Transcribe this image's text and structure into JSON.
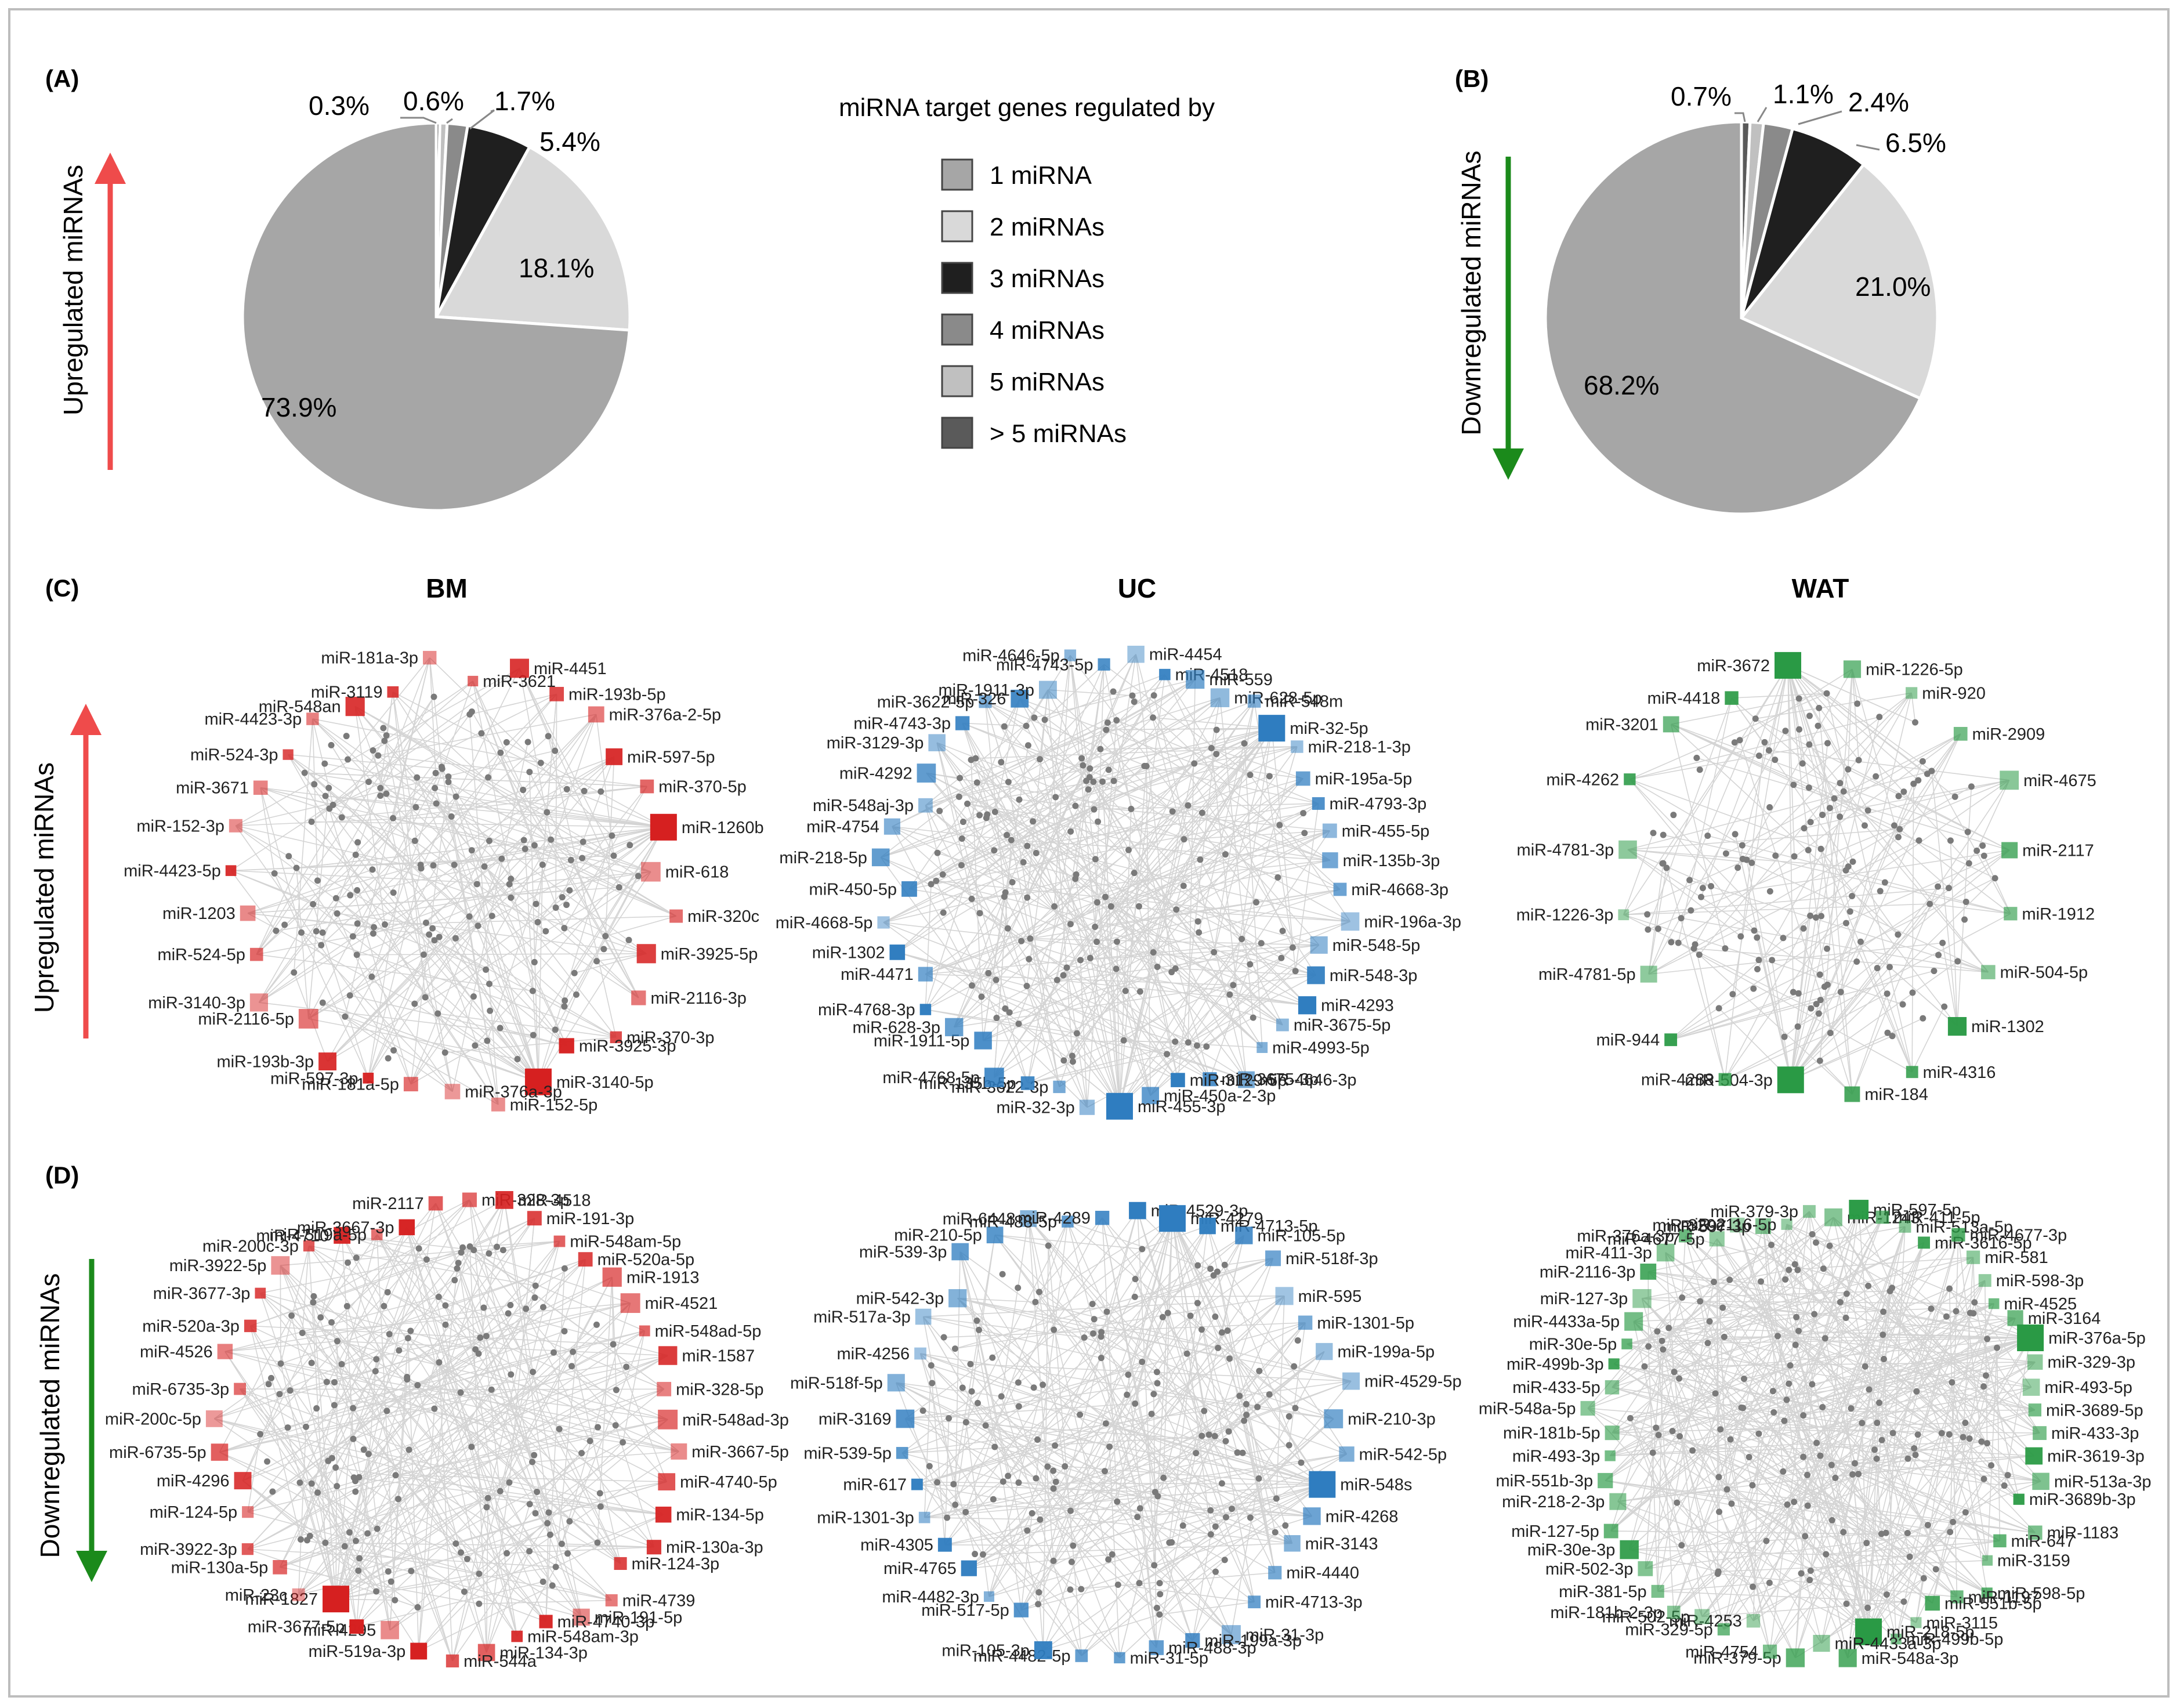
{
  "panels": {
    "A": "(A)",
    "B": "(B)",
    "C": "(C)",
    "D": "(D)"
  },
  "side_labels": {
    "upregulated_top": "Upregulated miRNAs",
    "downregulated_top": "Downregulated miRNAs",
    "upregulated_c": "Upregulated miRNAs",
    "downregulated_d": "Downregulated miRNAs"
  },
  "network_titles": {
    "bm": "BM",
    "uc": "UC",
    "wat": "WAT"
  },
  "colors": {
    "one": "#a6a6a6",
    "two": "#d9d9d9",
    "three": "#1f1f1f",
    "four": "#8a8a8a",
    "five": "#c0c0c0",
    "more": "#5a5a5a",
    "up_arrow": "#ef4b4b",
    "down_arrow": "#1b8a1b",
    "bm": "#d62020",
    "uc": "#2f7dc0",
    "wat": "#2a9a45"
  },
  "chart_data": [
    {
      "type": "pie",
      "title": "(A)",
      "legend_title": "miRNA target genes regulated by",
      "labels": [
        "1 miRNA",
        "2 miRNAs",
        "3 miRNAs",
        "4 miRNAs",
        "5 miRNAs",
        "> 5 miRNAs"
      ],
      "values": [
        73.9,
        18.1,
        5.4,
        1.7,
        0.6,
        0.3
      ],
      "value_labels": [
        "73.9%",
        "18.1%",
        "5.4%",
        "1.7%",
        "0.6%",
        "0.3%"
      ]
    },
    {
      "type": "pie",
      "title": "(B)",
      "labels": [
        "1 miRNA",
        "2 miRNAs",
        "3 miRNAs",
        "4 miRNAs",
        "5 miRNAs",
        "> 5 miRNAs"
      ],
      "values": [
        68.2,
        21.0,
        6.5,
        2.4,
        1.1,
        0.7
      ],
      "value_labels": [
        "68.2%",
        "21.0%",
        "6.5%",
        "2.4%",
        "1.1%",
        "0.7%"
      ]
    }
  ],
  "networks": {
    "C_bm": [
      "miR-3621",
      "miR-4451",
      "miR-193b-5p",
      "miR-376a-2-5p",
      "miR-597-5p",
      "miR-370-5p",
      "miR-1260b",
      "miR-618",
      "miR-320c",
      "miR-3925-5p",
      "miR-2116-3p",
      "miR-370-3p",
      "miR-3925-3p",
      "miR-3140-5p",
      "miR-152-5p",
      "miR-376a-3p",
      "miR-181a-5p",
      "miR-597-3p",
      "miR-193b-3p",
      "miR-2116-5p",
      "miR-3140-3p",
      "miR-524-5p",
      "miR-1203",
      "miR-4423-5p",
      "miR-152-3p",
      "miR-3671",
      "miR-524-3p",
      "miR-4423-3p",
      "miR-548an",
      "miR-3119",
      "miR-181a-3p"
    ],
    "C_uc": [
      "miR-4454",
      "miR-4518",
      "miR-559",
      "miR-628-5p",
      "miR-548m",
      "miR-32-5p",
      "miR-218-1-3p",
      "miR-195a-5p",
      "miR-4793-3p",
      "miR-455-5p",
      "miR-135b-3p",
      "miR-4668-3p",
      "miR-196a-3p",
      "miR-548-5p",
      "miR-548-3p",
      "miR-4293",
      "miR-3675-5p",
      "miR-4993-5p",
      "miR-4646-3p",
      "miR-3675-3p",
      "miR-3129-5p",
      "miR-450a-2-3p",
      "miR-455-3p",
      "miR-32-3p",
      "miR-3622-3p",
      "miR-135b-5p",
      "miR-4768-5p",
      "miR-1911-5p",
      "miR-628-3p",
      "miR-4768-3p",
      "miR-4471",
      "miR-1302",
      "miR-4668-5p",
      "miR-450-5p",
      "miR-218-5p",
      "miR-4754",
      "miR-548aj-3p",
      "miR-4292",
      "miR-3129-3p",
      "miR-4743-3p",
      "miR-3622-5p",
      "miR-326",
      "miR-1911-3p",
      "miR-4646-5p",
      "miR-4743-5p"
    ],
    "C_wat": [
      "miR-1226-5p",
      "miR-920",
      "miR-2909",
      "miR-4675",
      "miR-2117",
      "miR-1912",
      "miR-504-5p",
      "miR-1302",
      "miR-4316",
      "miR-184",
      "miR-504-3p",
      "miR-4288",
      "miR-944",
      "miR-4781-5p",
      "miR-1226-3p",
      "miR-4781-3p",
      "miR-4262",
      "miR-3201",
      "miR-4418",
      "miR-3672"
    ],
    "D_bm": [
      "miR-328-3p",
      "miR-4518",
      "miR-191-3p",
      "miR-548am-5p",
      "miR-520a-5p",
      "miR-1913",
      "miR-4521",
      "miR-548ad-5p",
      "miR-1587",
      "miR-328-5p",
      "miR-548ad-3p",
      "miR-3667-5p",
      "miR-4740-5p",
      "miR-134-5p",
      "miR-130a-3p",
      "miR-124-3p",
      "miR-4739",
      "miR-191-5p",
      "miR-4740-3p",
      "miR-548am-3p",
      "miR-134-3p",
      "miR-544a",
      "miR-519a-3p",
      "miR-4295",
      "miR-3677-5p",
      "miR-1827",
      "miR-23c",
      "miR-130a-5p",
      "miR-3922-3p",
      "miR-124-5p",
      "miR-4296",
      "miR-6735-5p",
      "miR-200c-5p",
      "miR-6735-3p",
      "miR-4526",
      "miR-520a-3p",
      "miR-3677-3p",
      "miR-3922-5p",
      "miR-200c-3p",
      "miR-4710",
      "miR-519a-5p",
      "miR-3667-3p",
      "miR-2117"
    ],
    "D_uc": [
      "miR-4529-3p",
      "miR-4279",
      "miR-4713-5p",
      "miR-105-5p",
      "miR-518f-3p",
      "miR-595",
      "miR-1301-5p",
      "miR-199a-5p",
      "miR-4529-5p",
      "miR-210-3p",
      "miR-542-5p",
      "miR-548s",
      "miR-4268",
      "miR-3143",
      "miR-4440",
      "miR-4713-3p",
      "miR-31-3p",
      "miR-199a-3p",
      "miR-488-3p",
      "miR-31-5p",
      "miR-4482-5p",
      "miR-105-3p",
      "miR-517-5p",
      "miR-4482-3p",
      "miR-4765",
      "miR-4305",
      "miR-1301-3p",
      "miR-617",
      "miR-539-5p",
      "miR-3169",
      "miR-518f-5p",
      "miR-4256",
      "miR-517a-3p",
      "miR-542-3p",
      "miR-539-3p",
      "miR-210-5p",
      "miR-6448",
      "miR-488-5p",
      "miR-4289"
    ],
    "D_wat": [
      "miR-1243",
      "miR-597-5p",
      "miR-411-5p",
      "miR-513a-5p",
      "miR-3616-5p",
      "miR-4677-3p",
      "miR-581",
      "miR-598-3p",
      "miR-4525",
      "miR-3164",
      "miR-376a-5p",
      "miR-329-3p",
      "miR-493-5p",
      "miR-3689-5p",
      "miR-433-3p",
      "miR-3619-3p",
      "miR-513a-3p",
      "miR-3689b-3p",
      "miR-1183",
      "miR-647",
      "miR-3159",
      "miR-598-5p",
      "miR-1197",
      "miR-551b-5p",
      "miR-3115",
      "miR-499b-5p",
      "miR-218-5p",
      "miR-548a-3p",
      "miR-4433a-3p",
      "miR-379-5p",
      "miR-4754",
      "miR-4253",
      "miR-329-5p",
      "miR-502-5p",
      "miR-181b-2-3p",
      "miR-381-5p",
      "miR-502-3p",
      "miR-30e-3p",
      "miR-127-5p",
      "miR-218-2-3p",
      "miR-551b-3p",
      "miR-493-3p",
      "miR-181b-5p",
      "miR-548a-5p",
      "miR-433-5p",
      "miR-499b-3p",
      "miR-30e-5p",
      "miR-4433a-5p",
      "miR-127-3p",
      "miR-2116-3p",
      "miR-411-3p",
      "miR-376a-3p",
      "miR-4677-5p",
      "miR-320e",
      "miR-597-3p",
      "miR-2116-5p",
      "miR-379-3p"
    ]
  }
}
